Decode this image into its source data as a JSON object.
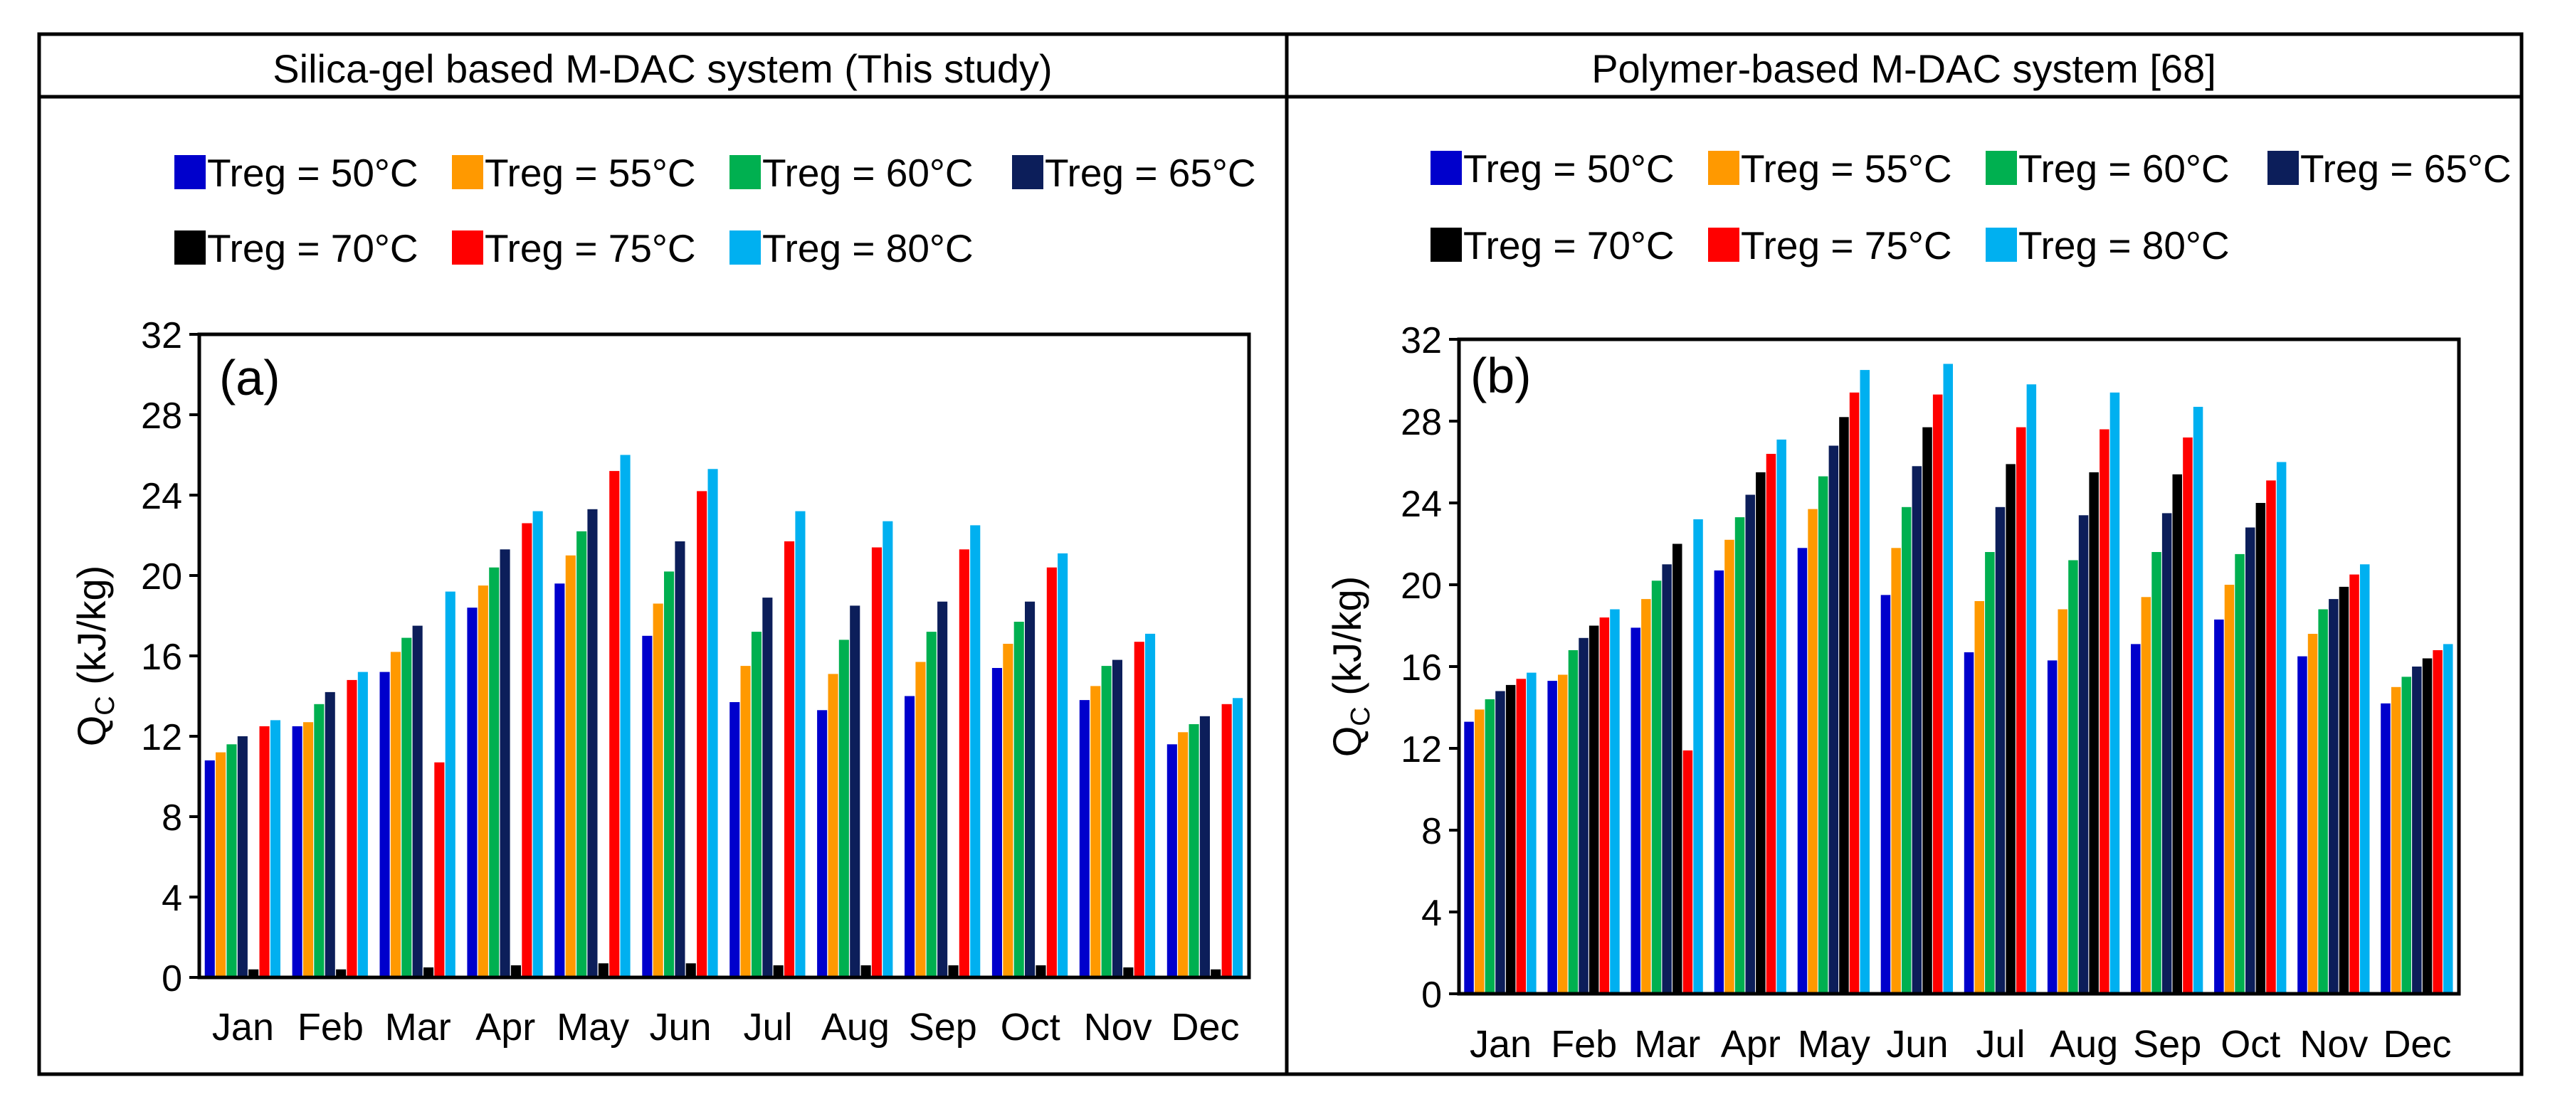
{
  "panels": [
    {
      "title": "Silica-gel based M-DAC system (This study)",
      "tag": "(a)"
    },
    {
      "title": "Polymer-based M-DAC system [68]",
      "tag": "(b)"
    }
  ],
  "colors": {
    "Treg = 50°C": "#0000CC",
    "Treg = 55°C": "#FF9900",
    "Treg = 60°C": "#00B050",
    "Treg = 65°C": "#0C1E5A",
    "Treg = 70°C": "#000000",
    "Treg = 75°C": "#FF0000",
    "Treg = 80°C": "#00B0F0"
  },
  "chart_data": [
    {
      "type": "bar",
      "title": "Silica-gel based M-DAC system (This study)",
      "xlabel": "",
      "ylabel_main": "Q",
      "ylabel_sub": "C",
      "ylabel_unit": " (kJ/kg)",
      "ylim": [
        0,
        32
      ],
      "yticks": [
        "0",
        "4",
        "8",
        "12",
        "16",
        "20",
        "24",
        "28",
        "32"
      ],
      "grid": false,
      "legend_position": "top",
      "categories": [
        "Jan",
        "Feb",
        "Mar",
        "Apr",
        "May",
        "Jun",
        "Jul",
        "Aug",
        "Sep",
        "Oct",
        "Nov",
        "Dec"
      ],
      "series": [
        {
          "name": "Treg = 50°C",
          "values": [
            10.8,
            12.5,
            15.2,
            18.4,
            19.6,
            17.0,
            13.7,
            13.3,
            14.0,
            15.4,
            13.8,
            11.6
          ]
        },
        {
          "name": "Treg = 55°C",
          "values": [
            11.2,
            12.7,
            16.2,
            19.5,
            21.0,
            18.6,
            15.5,
            15.1,
            15.7,
            16.6,
            14.5,
            12.2
          ]
        },
        {
          "name": "Treg = 60°C",
          "values": [
            11.6,
            13.6,
            16.9,
            20.4,
            22.2,
            20.2,
            17.2,
            16.8,
            17.2,
            17.7,
            15.5,
            12.6
          ]
        },
        {
          "name": "Treg = 65°C",
          "values": [
            12.0,
            14.2,
            17.5,
            21.3,
            23.3,
            21.7,
            18.9,
            18.5,
            18.7,
            18.7,
            15.8,
            13.0
          ]
        },
        {
          "name": "Treg = 70°C",
          "values": [
            0.4,
            0.4,
            0.5,
            0.6,
            0.7,
            0.7,
            0.6,
            0.6,
            0.6,
            0.6,
            0.5,
            0.4
          ]
        },
        {
          "name": "Treg = 75°C",
          "values": [
            12.5,
            14.8,
            10.7,
            22.6,
            25.2,
            24.2,
            21.7,
            21.4,
            21.3,
            20.4,
            16.7,
            13.6
          ]
        },
        {
          "name": "Treg = 80°C",
          "values": [
            12.8,
            15.2,
            19.2,
            23.2,
            26.0,
            25.3,
            23.2,
            22.7,
            22.5,
            21.1,
            17.1,
            13.9
          ]
        }
      ]
    },
    {
      "type": "bar",
      "title": "Polymer-based M-DAC system [68]",
      "xlabel": "",
      "ylabel_main": "Q",
      "ylabel_sub": "C",
      "ylabel_unit": " (kJ/kg)",
      "ylim": [
        0,
        32
      ],
      "yticks": [
        "0",
        "4",
        "8",
        "12",
        "16",
        "20",
        "24",
        "28",
        "32"
      ],
      "grid": false,
      "legend_position": "top",
      "categories": [
        "Jan",
        "Feb",
        "Mar",
        "Apr",
        "May",
        "Jun",
        "Jul",
        "Aug",
        "Sep",
        "Oct",
        "Nov",
        "Dec"
      ],
      "series": [
        {
          "name": "Treg = 50°C",
          "values": [
            13.3,
            15.3,
            17.9,
            20.7,
            21.8,
            19.5,
            16.7,
            16.3,
            17.1,
            18.3,
            16.5,
            14.2
          ]
        },
        {
          "name": "Treg = 55°C",
          "values": [
            13.9,
            15.6,
            19.3,
            22.2,
            23.7,
            21.8,
            19.2,
            18.8,
            19.4,
            20.0,
            17.6,
            15.0
          ]
        },
        {
          "name": "Treg = 60°C",
          "values": [
            14.4,
            16.8,
            20.2,
            23.3,
            25.3,
            23.8,
            21.6,
            21.2,
            21.6,
            21.5,
            18.8,
            15.5
          ]
        },
        {
          "name": "Treg = 65°C",
          "values": [
            14.8,
            17.4,
            21.0,
            24.4,
            26.8,
            25.8,
            23.8,
            23.4,
            23.5,
            22.8,
            19.3,
            16.0
          ]
        },
        {
          "name": "Treg = 70°C",
          "values": [
            15.1,
            18.0,
            22.0,
            25.5,
            28.2,
            27.7,
            25.9,
            25.5,
            25.4,
            24.0,
            19.9,
            16.4
          ]
        },
        {
          "name": "Treg = 75°C",
          "values": [
            15.4,
            18.4,
            11.9,
            26.4,
            29.4,
            29.3,
            27.7,
            27.6,
            27.2,
            25.1,
            20.5,
            16.8
          ]
        },
        {
          "name": "Treg = 80°C",
          "values": [
            15.7,
            18.8,
            23.2,
            27.1,
            30.5,
            30.8,
            29.8,
            29.4,
            28.7,
            26.0,
            21.0,
            17.1
          ]
        }
      ]
    }
  ]
}
